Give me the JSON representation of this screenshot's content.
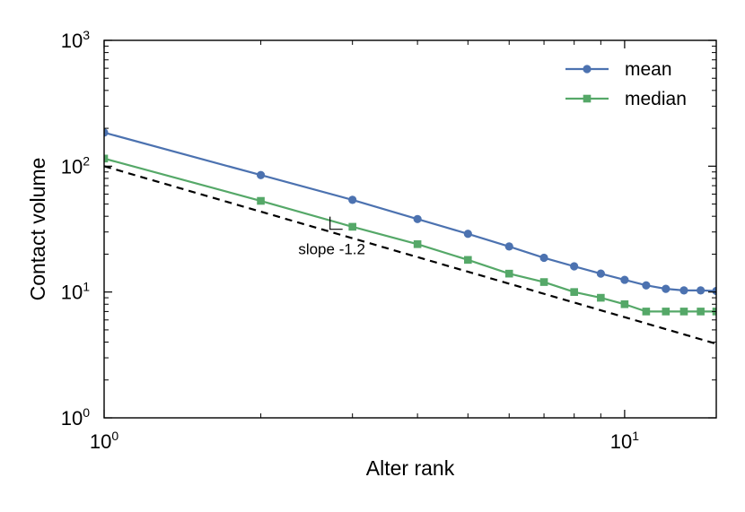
{
  "chart_data": {
    "type": "line",
    "title": "",
    "xlabel": "Alter rank",
    "ylabel": "Contact volume",
    "xscale": "log",
    "yscale": "log",
    "xlim": [
      1,
      15
    ],
    "ylim": [
      1,
      1000
    ],
    "grid": false,
    "legend_position": "top-right",
    "x_ticks": [
      {
        "base": "10",
        "exp": "0",
        "value": 1
      },
      {
        "base": "10",
        "exp": "1",
        "value": 10
      }
    ],
    "y_ticks": [
      {
        "base": "10",
        "exp": "0",
        "value": 1
      },
      {
        "base": "10",
        "exp": "1",
        "value": 10
      },
      {
        "base": "10",
        "exp": "2",
        "value": 100
      },
      {
        "base": "10",
        "exp": "3",
        "value": 1000
      }
    ],
    "x": [
      1,
      2,
      3,
      4,
      5,
      6,
      7,
      8,
      9,
      10,
      11,
      12,
      13,
      14,
      15
    ],
    "series": [
      {
        "name": "mean",
        "color": "#4c72b0",
        "marker": "circle",
        "values": [
          185,
          85,
          54,
          38,
          29,
          23,
          18.7,
          16,
          14,
          12.5,
          11.3,
          10.6,
          10.3,
          10.3,
          10.2
        ]
      },
      {
        "name": "median",
        "color": "#55a868",
        "marker": "square",
        "values": [
          115,
          53,
          33,
          24,
          18,
          14,
          12,
          10,
          9,
          8,
          7,
          7,
          7,
          7,
          7
        ]
      }
    ],
    "reference_line": {
      "label": "slope -1.2",
      "slope": -1.2,
      "intercept": 100,
      "style": "dashed",
      "color": "#000000"
    }
  }
}
